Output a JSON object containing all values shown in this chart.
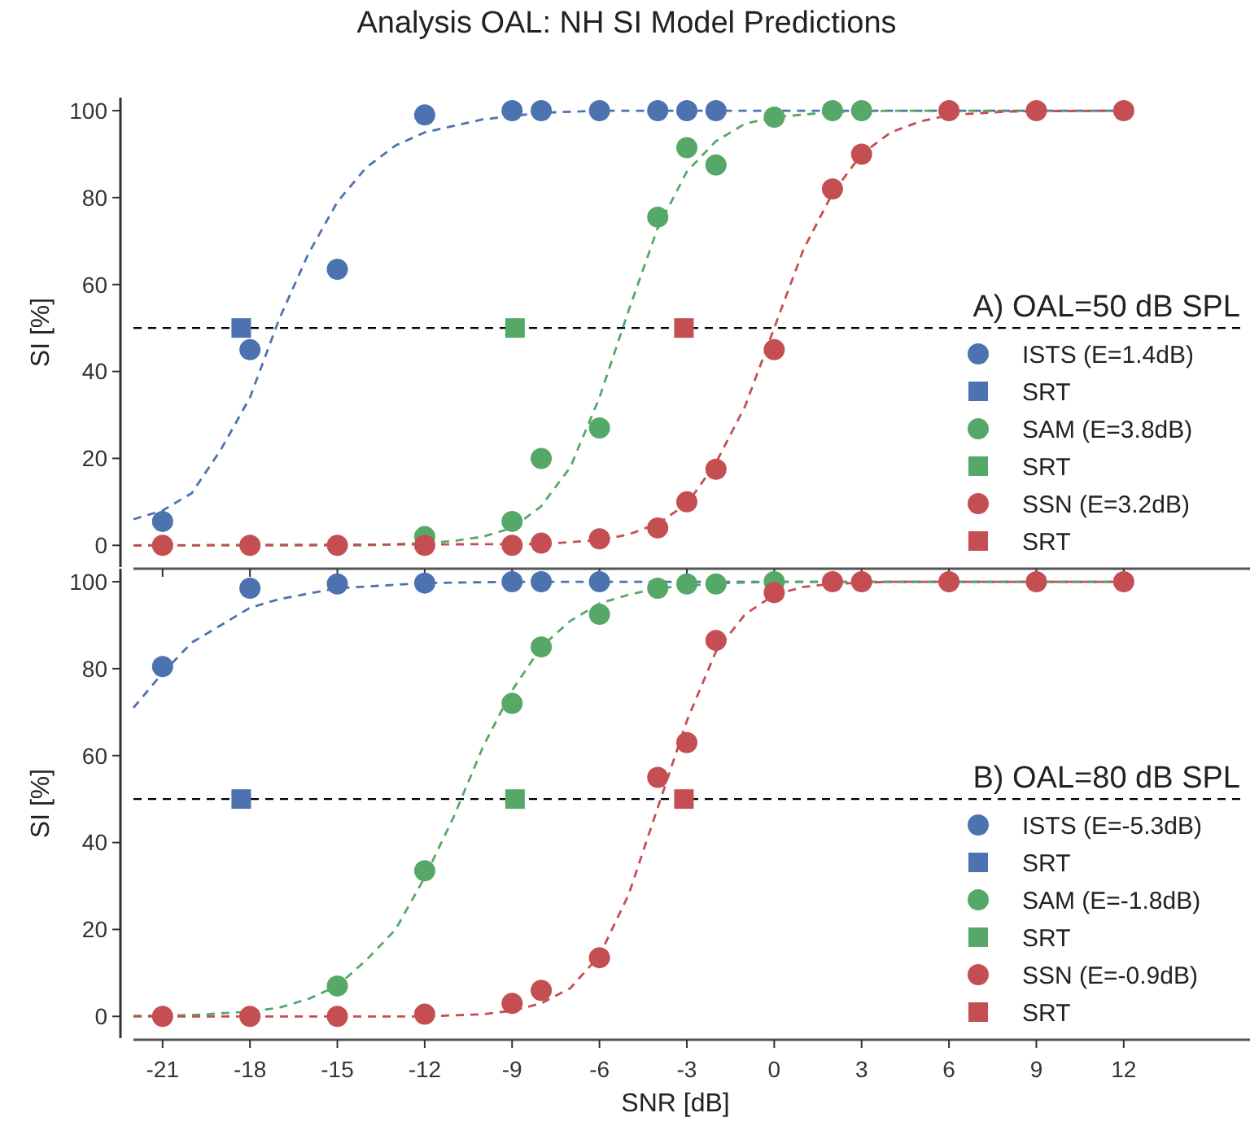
{
  "chart_data": [
    {
      "type": "scatter",
      "title": "Analysis OAL: NH SI Model Predictions",
      "ylabel": "SI [%]",
      "legend_title": "A) OAL=50 dB SPL",
      "legend": "lower right",
      "tick_labels": "y",
      "xlim": [
        -22,
        16
      ],
      "xticks": [
        -21,
        -18,
        -15,
        -12,
        -9,
        -6,
        -3,
        0,
        3,
        6,
        9,
        12
      ],
      "ylim": [
        -5,
        103
      ],
      "yticks": [
        0,
        20,
        40,
        60,
        80,
        100
      ],
      "ref_lines": [
        {
          "axis": "y",
          "value": 50,
          "color": "#000000",
          "line_style": "dashed"
        }
      ],
      "series": [
        {
          "type": "line",
          "color": "#4c72b0",
          "line_style": "dashed",
          "marker": "none",
          "x": [
            -22,
            -21,
            -20,
            -19,
            -18,
            -17,
            -16,
            -15,
            -14,
            -13,
            -12,
            -10,
            -8,
            -6,
            0,
            12
          ],
          "values": [
            6,
            8,
            12,
            22,
            34,
            52,
            67,
            79,
            87,
            92,
            95,
            98,
            99.5,
            100,
            100,
            100
          ]
        },
        {
          "type": "line",
          "color": "#55a868",
          "line_style": "dashed",
          "marker": "none",
          "x": [
            -22,
            -14,
            -12,
            -11,
            -10,
            -9,
            -8,
            -7,
            -6,
            -5,
            -4,
            -3,
            -2,
            -1,
            0,
            2,
            4,
            12
          ],
          "values": [
            0,
            0,
            0.5,
            1,
            2,
            4,
            9,
            18,
            34,
            54,
            73,
            86,
            93,
            97,
            98.5,
            99.7,
            100,
            100
          ]
        },
        {
          "type": "line",
          "color": "#c44e52",
          "line_style": "dashed",
          "marker": "none",
          "x": [
            -22,
            -8,
            -6,
            -5,
            -4,
            -3,
            -2,
            -1,
            0,
            1,
            2,
            3,
            4,
            5,
            6,
            8,
            12
          ],
          "values": [
            0,
            0.3,
            1.2,
            2.5,
            5,
            9.5,
            19,
            32,
            50,
            68,
            81,
            90,
            95,
            97.5,
            99,
            99.8,
            100
          ]
        },
        {
          "name": "ISTS (E=1.4dB)",
          "color": "#4c72b0",
          "marker": "circle",
          "x": [
            -21,
            -18,
            -15,
            -12,
            -9,
            -8,
            -6,
            -4,
            -3,
            -2
          ],
          "values": [
            5.5,
            45,
            63.5,
            99,
            100,
            100,
            100,
            100,
            100,
            100
          ]
        },
        {
          "name": "SRT",
          "color": "#4c72b0",
          "marker": "square",
          "x": [
            -18.3
          ],
          "values": [
            50
          ]
        },
        {
          "name": "SAM (E=3.8dB)",
          "color": "#55a868",
          "marker": "circle",
          "x": [
            -12,
            -9,
            -8,
            -6,
            -4,
            -3,
            -2,
            0,
            2,
            3
          ],
          "values": [
            2,
            5.5,
            20,
            27,
            75.5,
            91.5,
            87.5,
            98.5,
            100,
            100
          ]
        },
        {
          "name": "SRT",
          "color": "#55a868",
          "marker": "square",
          "x": [
            -8.9
          ],
          "values": [
            50
          ]
        },
        {
          "name": "SSN (E=3.2dB)",
          "color": "#c44e52",
          "marker": "circle",
          "x": [
            -21,
            -18,
            -15,
            -12,
            -9,
            -8,
            -6,
            -4,
            -3,
            -2,
            0,
            2,
            3,
            6,
            9,
            12
          ],
          "values": [
            0,
            0,
            0,
            0,
            0,
            0.5,
            1.5,
            4,
            10,
            17.5,
            45,
            82,
            90,
            100,
            100,
            100
          ]
        },
        {
          "name": "SRT",
          "color": "#c44e52",
          "marker": "square",
          "x": [
            -3.1
          ],
          "values": [
            50
          ]
        }
      ]
    },
    {
      "type": "scatter",
      "xlabel": "SNR [dB]",
      "ylabel": "SI [%]",
      "legend_title": "B) OAL=80 dB SPL",
      "legend": "lower right",
      "xlim": [
        -22,
        16
      ],
      "xticks": [
        -21,
        -18,
        -15,
        -12,
        -9,
        -6,
        -3,
        0,
        3,
        6,
        9,
        12
      ],
      "ylim": [
        -5,
        103
      ],
      "yticks": [
        0,
        20,
        40,
        60,
        80,
        100
      ],
      "ref_lines": [
        {
          "axis": "y",
          "value": 50,
          "color": "#000000",
          "line_style": "dashed"
        }
      ],
      "series": [
        {
          "type": "line",
          "color": "#4c72b0",
          "line_style": "dashed",
          "marker": "none",
          "x": [
            -22,
            -21,
            -20,
            -19,
            -18,
            -17,
            -15,
            -12,
            -9,
            12
          ],
          "values": [
            71,
            79,
            86,
            90,
            94,
            96,
            98.5,
            99.7,
            100,
            100
          ]
        },
        {
          "type": "line",
          "color": "#55a868",
          "line_style": "dashed",
          "marker": "none",
          "x": [
            -22,
            -20,
            -18,
            -17,
            -16,
            -15,
            -14,
            -13,
            -12,
            -11,
            -10,
            -9,
            -8,
            -7,
            -6,
            -5,
            -4,
            -2,
            0,
            12
          ],
          "values": [
            0.1,
            0.3,
            1.1,
            2,
            4,
            7,
            13,
            20,
            32,
            46,
            62,
            75,
            85,
            91,
            95,
            97,
            98.5,
            99.6,
            100,
            100
          ]
        },
        {
          "type": "line",
          "color": "#c44e52",
          "line_style": "dashed",
          "marker": "none",
          "x": [
            -22,
            -12,
            -10,
            -9,
            -8,
            -7,
            -6,
            -5,
            -4,
            -3,
            -2,
            -1,
            0,
            1,
            2,
            4,
            12
          ],
          "values": [
            0,
            0,
            0.5,
            1.3,
            3,
            6.5,
            14,
            28,
            48,
            68,
            84,
            92.5,
            97,
            98.8,
            99.5,
            100,
            100
          ]
        },
        {
          "name": "ISTS (E=-5.3dB)",
          "color": "#4c72b0",
          "marker": "circle",
          "x": [
            -21,
            -18,
            -15,
            -12,
            -9,
            -8,
            -6
          ],
          "values": [
            80.5,
            98.5,
            99.5,
            99.7,
            100,
            100,
            100
          ]
        },
        {
          "name": "SRT",
          "color": "#4c72b0",
          "marker": "square",
          "x": [
            -18.3
          ],
          "values": [
            50
          ]
        },
        {
          "name": "SAM (E=-1.8dB)",
          "color": "#55a868",
          "marker": "circle",
          "x": [
            -15,
            -12,
            -9,
            -8,
            -6,
            -4,
            -3,
            -2,
            0
          ],
          "values": [
            7,
            33.5,
            72,
            85,
            92.5,
            98.5,
            99.5,
            99.5,
            100
          ]
        },
        {
          "name": "SRT",
          "color": "#55a868",
          "marker": "square",
          "x": [
            -8.9
          ],
          "values": [
            50
          ]
        },
        {
          "name": "SSN (E=-0.9dB)",
          "color": "#c44e52",
          "marker": "circle",
          "x": [
            -21,
            -18,
            -15,
            -12,
            -9,
            -8,
            -6,
            -4,
            -3,
            -2,
            0,
            2,
            3,
            6,
            9,
            12
          ],
          "values": [
            0,
            0,
            0,
            0.5,
            3,
            6,
            13.5,
            55,
            63,
            86.5,
            97.5,
            100,
            100,
            100,
            100,
            100
          ]
        },
        {
          "name": "SRT",
          "color": "#c44e52",
          "marker": "square",
          "x": [
            -3.1
          ],
          "values": [
            50
          ]
        }
      ]
    }
  ]
}
